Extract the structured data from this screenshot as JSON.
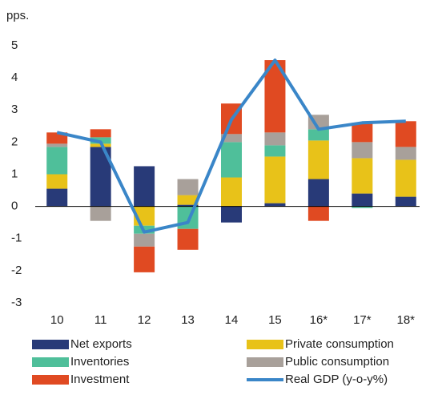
{
  "chart_data": {
    "type": "bar",
    "stacked": true,
    "y_label": "pps.",
    "categories": [
      "10",
      "11",
      "12",
      "13",
      "14",
      "15",
      "16*",
      "17*",
      "18*"
    ],
    "series": [
      {
        "name": "Net exports",
        "color": "#283a78",
        "values": [
          0.55,
          1.85,
          1.25,
          0.05,
          -0.5,
          0.1,
          0.85,
          0.4,
          0.3
        ]
      },
      {
        "name": "Private consumption",
        "color": "#e8c219",
        "values": [
          0.45,
          0.1,
          -0.6,
          0.3,
          0.9,
          1.45,
          1.2,
          1.1,
          1.15
        ]
      },
      {
        "name": "Inventories",
        "color": "#4fbf9a",
        "values": [
          0.85,
          0.2,
          -0.25,
          -0.7,
          1.1,
          0.35,
          0.35,
          -0.05,
          0.0
        ]
      },
      {
        "name": "Public consumption",
        "color": "#a8a09a",
        "values": [
          0.1,
          -0.45,
          -0.4,
          0.5,
          0.25,
          0.4,
          0.45,
          0.5,
          0.4
        ]
      },
      {
        "name": "Investment",
        "color": "#e04a22",
        "values": [
          0.35,
          0.25,
          -0.8,
          -0.65,
          0.95,
          2.25,
          -0.45,
          0.6,
          0.8
        ]
      },
      {
        "name": "Real GDP (y-o-y%)",
        "color": "#3a86c8",
        "type": "line",
        "values": [
          2.3,
          2.0,
          -0.8,
          -0.5,
          2.7,
          4.55,
          2.4,
          2.6,
          2.65
        ]
      }
    ],
    "ylim": [
      -3,
      5
    ],
    "yticks": [
      -3,
      -2,
      -1,
      0,
      1,
      2,
      3,
      4,
      5
    ],
    "grid": false
  }
}
